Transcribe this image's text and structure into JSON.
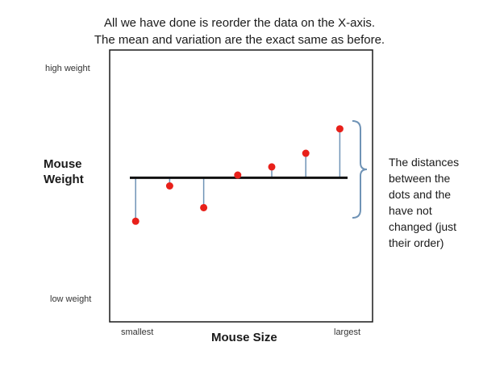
{
  "header": {
    "line1": "All we have done is reorder the data on the X-axis.",
    "line2": "The mean and variation are the exact same as before."
  },
  "chart_data": {
    "type": "scatter",
    "title": "",
    "xlabel": "Mouse Size",
    "ylabel": "Mouse Weight",
    "y_tick_labels": {
      "top": "high weight",
      "bottom": "low weight"
    },
    "x_tick_labels": {
      "left": "smallest",
      "right": "largest"
    },
    "ylim": [
      0,
      100
    ],
    "points": [
      {
        "x": 1,
        "y": 37
      },
      {
        "x": 2,
        "y": 50
      },
      {
        "x": 3,
        "y": 42
      },
      {
        "x": 4,
        "y": 54
      },
      {
        "x": 5,
        "y": 57
      },
      {
        "x": 6,
        "y": 62
      },
      {
        "x": 7,
        "y": 71
      }
    ],
    "mean": 53,
    "grid": false
  },
  "annotation": {
    "lines": [
      "The distances",
      "between the",
      "dots and the",
      "have not",
      "changed (just",
      "their order)"
    ]
  },
  "colors": {
    "point": "#e8201a",
    "residual": "#6f93b6",
    "mean_line": "#111111",
    "brace": "#6f93b6",
    "frame": "#1a1a1a"
  }
}
